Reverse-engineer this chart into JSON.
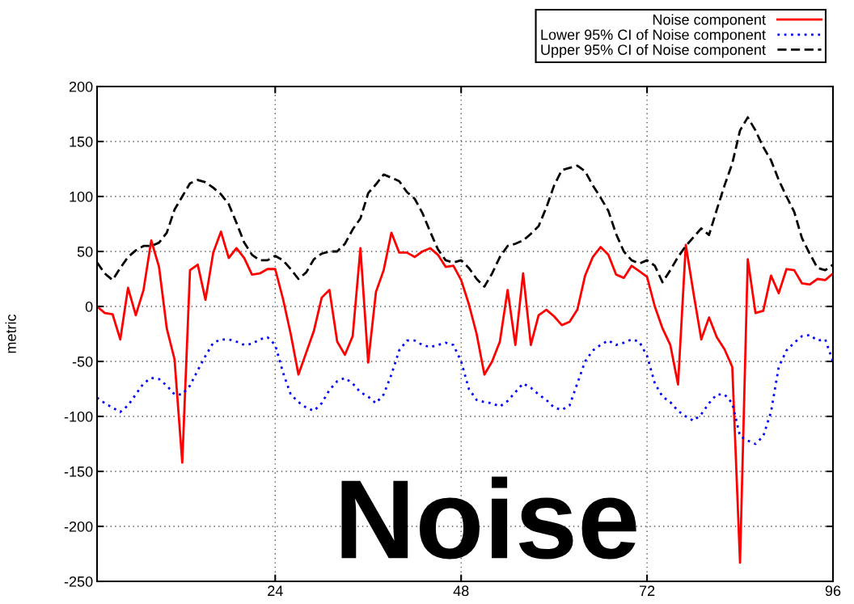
{
  "chart_data": {
    "type": "line",
    "ylabel": "metric",
    "annotations": [
      "Noise"
    ],
    "x": [
      1,
      2,
      3,
      4,
      5,
      6,
      7,
      8,
      9,
      10,
      11,
      12,
      13,
      14,
      15,
      16,
      17,
      18,
      19,
      20,
      21,
      22,
      23,
      24,
      25,
      26,
      27,
      28,
      29,
      30,
      31,
      32,
      33,
      34,
      35,
      36,
      37,
      38,
      39,
      40,
      41,
      42,
      43,
      44,
      45,
      46,
      47,
      48,
      49,
      50,
      51,
      52,
      53,
      54,
      55,
      56,
      57,
      58,
      59,
      60,
      61,
      62,
      63,
      64,
      65,
      66,
      67,
      68,
      69,
      70,
      71,
      72,
      73,
      74,
      75,
      76,
      77,
      78,
      79,
      80,
      81,
      82,
      83,
      84,
      85,
      86,
      87,
      88,
      89,
      90,
      91,
      92,
      93,
      94,
      95,
      96
    ],
    "series": [
      {
        "name": "Noise component",
        "color": "#ff0000",
        "line_style": "solid",
        "values": [
          0,
          -6,
          -7,
          -30,
          17,
          -8,
          15,
          60,
          36,
          -20,
          -48,
          -142,
          33,
          38,
          6,
          49,
          68,
          44,
          53,
          44,
          29,
          30,
          34,
          34,
          7,
          -25,
          -62,
          -42,
          -22,
          8,
          15,
          -32,
          -44,
          -27,
          53,
          -51,
          13,
          33,
          67,
          49,
          49,
          45,
          50,
          53,
          47,
          36,
          37,
          24,
          2,
          -25,
          -62,
          -50,
          -32,
          15,
          -35,
          30,
          -35,
          -8,
          -3,
          -9,
          -17,
          -14,
          -3,
          28,
          45,
          54,
          47,
          29,
          26,
          37,
          32,
          27,
          0,
          -20,
          -35,
          -71,
          56,
          12,
          -30,
          -10,
          -28,
          -39,
          -55,
          -233,
          43,
          -6,
          -4,
          28,
          12,
          34,
          33,
          21,
          20,
          25,
          24,
          30
        ]
      },
      {
        "name": "Lower 95% CI of Noise component",
        "color": "#0000ff",
        "line_style": "dotted",
        "values": [
          -83,
          -88,
          -92,
          -96,
          -90,
          -80,
          -70,
          -65,
          -66,
          -72,
          -80,
          -80,
          -72,
          -58,
          -45,
          -33,
          -30,
          -30,
          -32,
          -35,
          -34,
          -30,
          -28,
          -35,
          -60,
          -80,
          -87,
          -92,
          -95,
          -88,
          -76,
          -68,
          -65,
          -70,
          -78,
          -82,
          -88,
          -80,
          -62,
          -40,
          -31,
          -31,
          -35,
          -37,
          -35,
          -33,
          -35,
          -50,
          -75,
          -85,
          -87,
          -88,
          -91,
          -86,
          -78,
          -70,
          -74,
          -80,
          -85,
          -92,
          -94,
          -90,
          -70,
          -50,
          -40,
          -35,
          -31,
          -35,
          -33,
          -30,
          -32,
          -45,
          -70,
          -82,
          -87,
          -95,
          -100,
          -104,
          -98,
          -88,
          -80,
          -80,
          -88,
          -118,
          -122,
          -125,
          -118,
          -96,
          -55,
          -40,
          -33,
          -27,
          -26,
          -31,
          -30,
          -50
        ]
      },
      {
        "name": "Upper 95% CI of Noise component",
        "color": "#000000",
        "line_style": "dashed",
        "values": [
          40,
          30,
          24,
          35,
          45,
          51,
          55,
          55,
          58,
          67,
          88,
          100,
          112,
          115,
          113,
          108,
          102,
          93,
          76,
          58,
          47,
          42,
          42,
          46,
          42,
          34,
          25,
          31,
          43,
          48,
          50,
          50,
          57,
          70,
          80,
          103,
          111,
          120,
          117,
          114,
          104,
          98,
          85,
          68,
          52,
          42,
          40,
          42,
          35,
          25,
          18,
          30,
          45,
          55,
          57,
          60,
          66,
          73,
          90,
          110,
          124,
          126,
          128,
          123,
          110,
          99,
          87,
          66,
          50,
          42,
          39,
          42,
          37,
          22,
          33,
          45,
          55,
          63,
          71,
          65,
          88,
          110,
          130,
          160,
          172,
          160,
          145,
          133,
          115,
          100,
          86,
          62,
          48,
          35,
          33,
          38
        ]
      }
    ],
    "xlim": [
      1,
      96
    ],
    "xticks": [
      24,
      48,
      72,
      96
    ],
    "ylim": [
      -250,
      200
    ],
    "yticks": [
      -250,
      -200,
      -150,
      -100,
      -50,
      0,
      50,
      100,
      150,
      200
    ],
    "grid": true,
    "legend": "top right",
    "marker": "none"
  }
}
